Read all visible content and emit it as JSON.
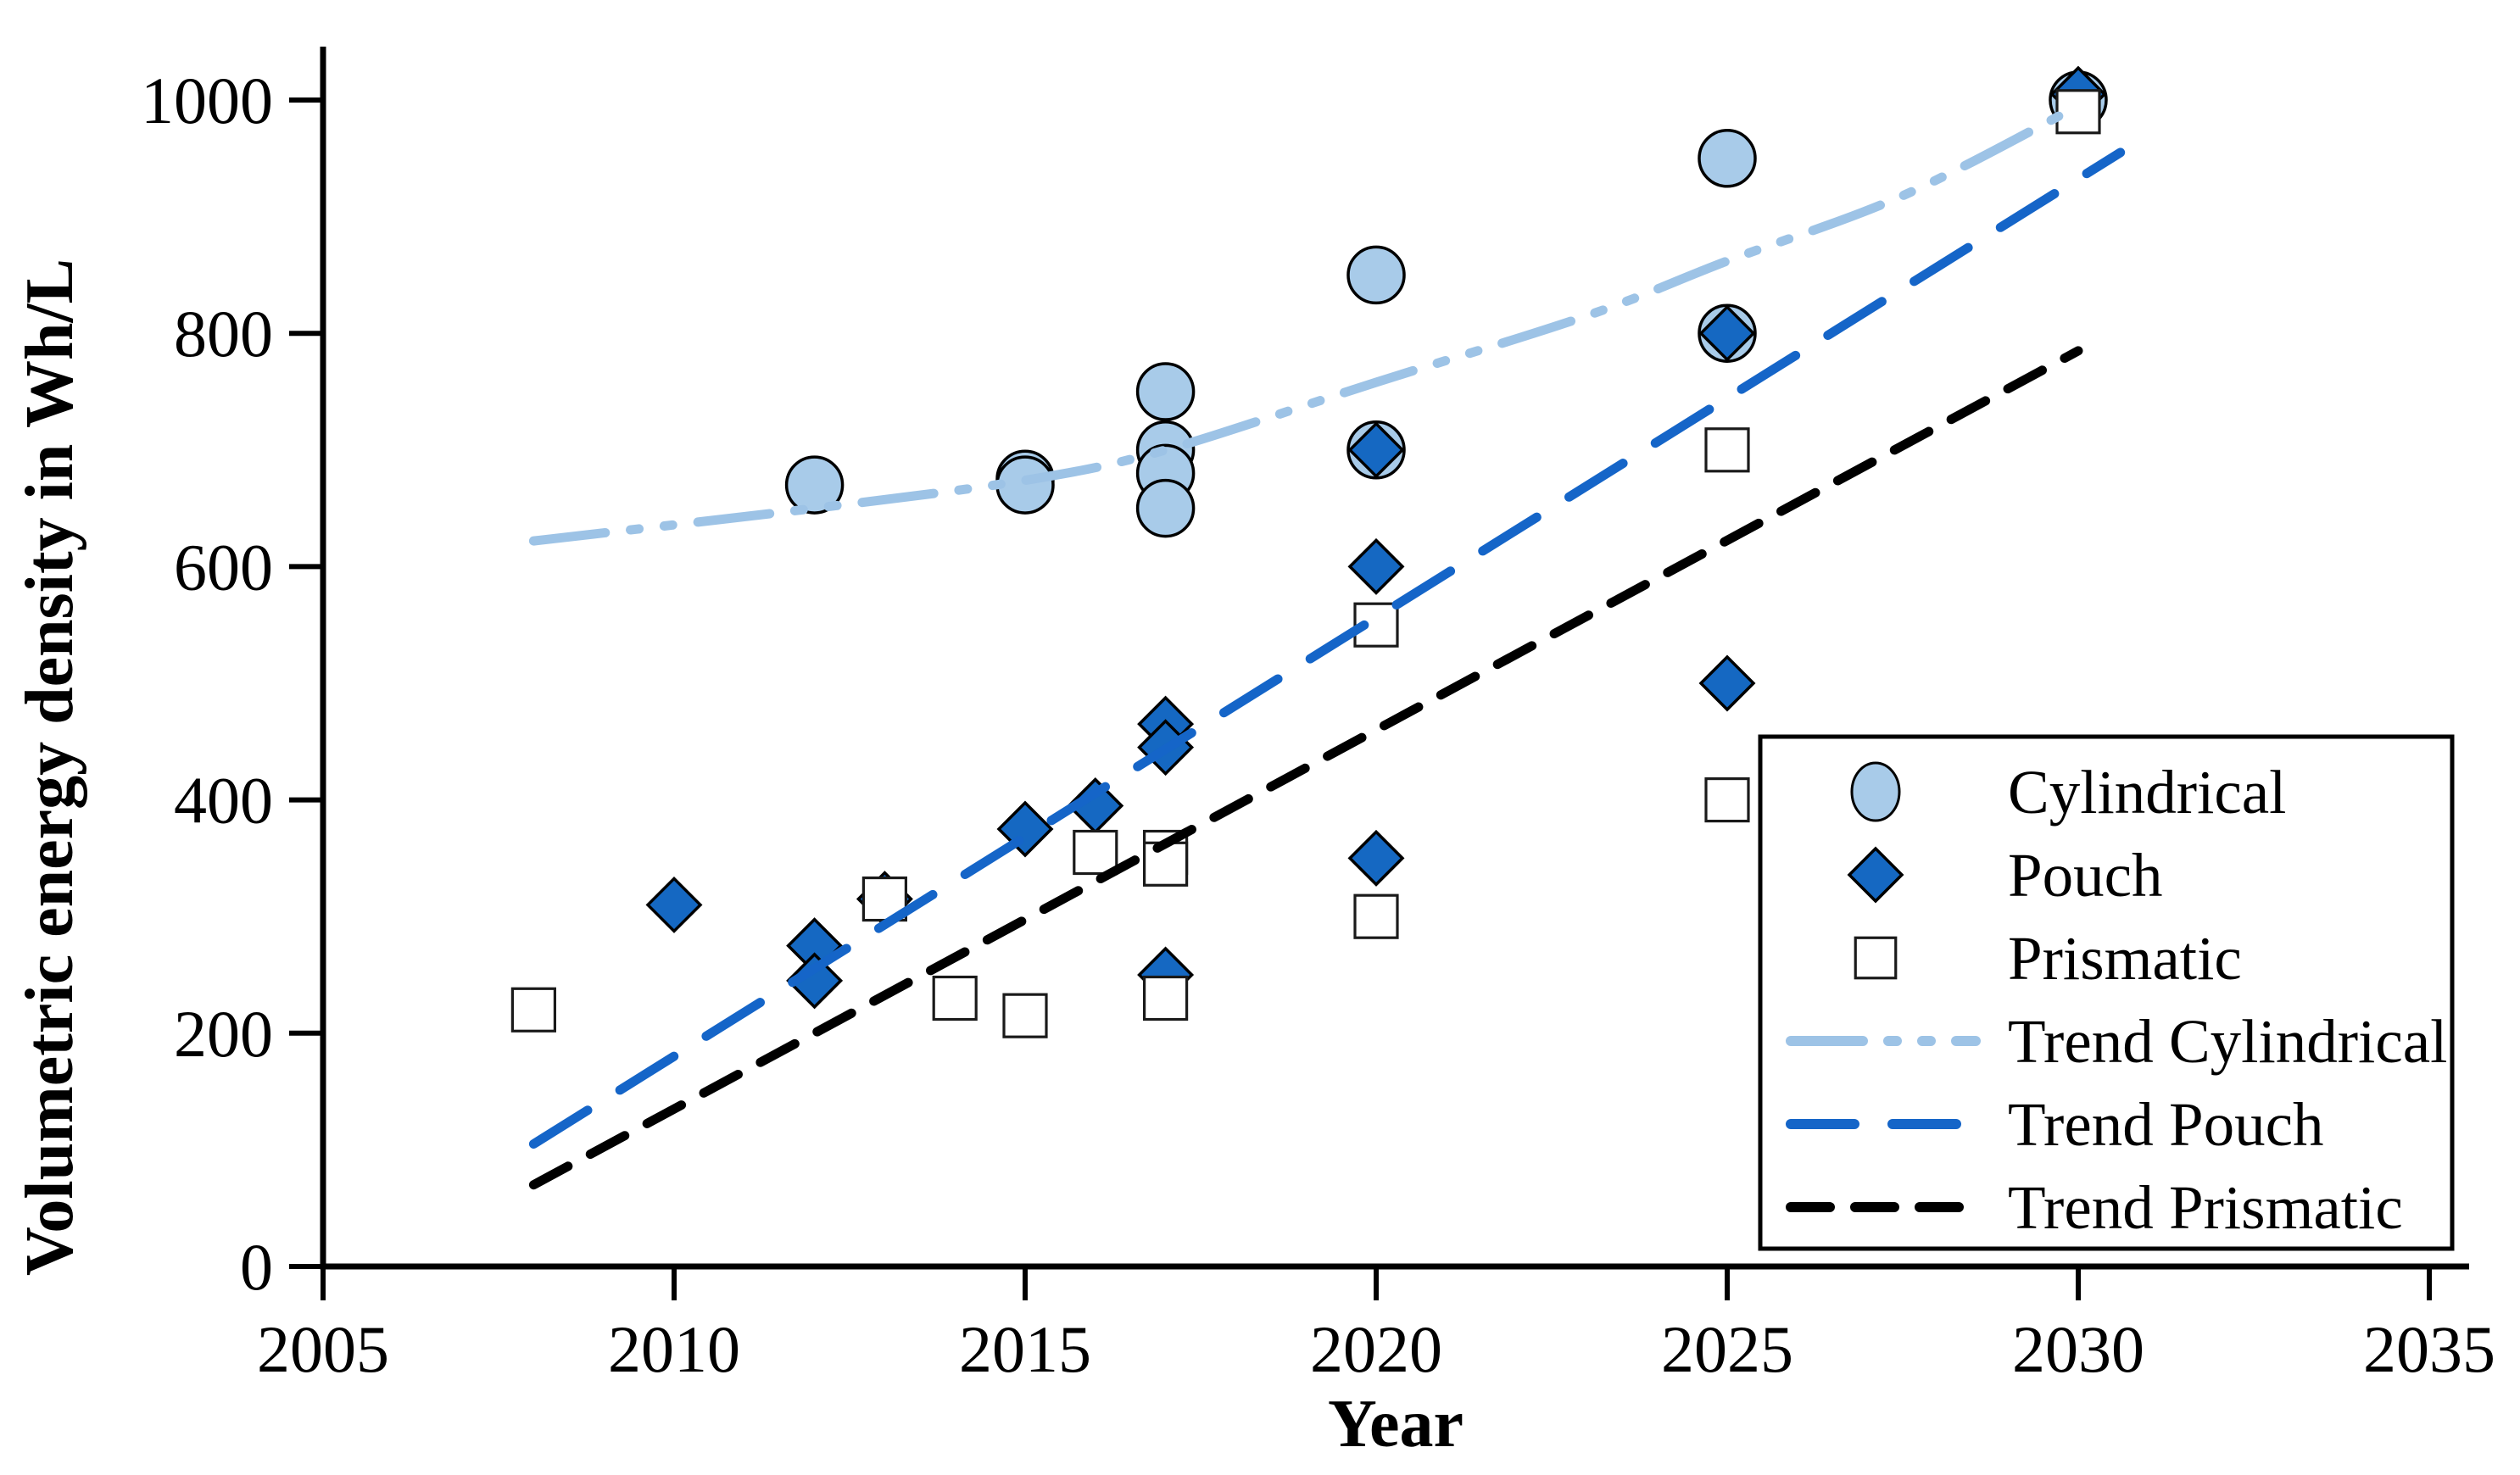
{
  "chart_data": {
    "type": "scatter",
    "title": "",
    "xlabel": "Year",
    "ylabel": "Volumetric energy density in Wh/L",
    "xlim": [
      2005,
      2035
    ],
    "ylim": [
      0,
      1040
    ],
    "x_ticks": [
      2005,
      2010,
      2015,
      2020,
      2025,
      2030,
      2035
    ],
    "y_ticks": [
      0,
      200,
      400,
      600,
      800,
      1000
    ],
    "grid": false,
    "legend_position": "inside-right-bottom",
    "series": [
      {
        "name": "Cylindrical",
        "marker": "circle",
        "fill": "#A8CBE9",
        "stroke": "#000000",
        "points": [
          [
            2012,
            670
          ],
          [
            2015,
            675
          ],
          [
            2015,
            670
          ],
          [
            2017,
            750
          ],
          [
            2017,
            700
          ],
          [
            2017,
            680
          ],
          [
            2017,
            650
          ],
          [
            2020,
            850
          ],
          [
            2020,
            700
          ],
          [
            2025,
            950
          ],
          [
            2025,
            800
          ],
          [
            2030,
            1000
          ]
        ]
      },
      {
        "name": "Pouch",
        "marker": "diamond",
        "fill": "#1568C2",
        "stroke": "#000000",
        "points": [
          [
            2010,
            310
          ],
          [
            2012,
            275
          ],
          [
            2012,
            245
          ],
          [
            2013,
            315
          ],
          [
            2015,
            375
          ],
          [
            2016,
            395
          ],
          [
            2017,
            465
          ],
          [
            2017,
            445
          ],
          [
            2017,
            250
          ],
          [
            2020,
            700
          ],
          [
            2020,
            600
          ],
          [
            2020,
            350
          ],
          [
            2025,
            800
          ],
          [
            2025,
            500
          ],
          [
            2030,
            1005
          ]
        ]
      },
      {
        "name": "Prismatic",
        "marker": "square",
        "fill": "#FFFFFF",
        "stroke": "#1a1a1a",
        "points": [
          [
            2008,
            220
          ],
          [
            2013,
            315
          ],
          [
            2014,
            230
          ],
          [
            2015,
            215
          ],
          [
            2016,
            355
          ],
          [
            2017,
            355
          ],
          [
            2017,
            345
          ],
          [
            2017,
            230
          ],
          [
            2020,
            550
          ],
          [
            2020,
            300
          ],
          [
            2025,
            700
          ],
          [
            2025,
            400
          ],
          [
            2030,
            990
          ]
        ]
      }
    ],
    "trends": [
      {
        "name": "Trend Cylindrical",
        "color": "#9DC3E6",
        "style": "dash-dot-dot",
        "points": [
          [
            2008,
            622
          ],
          [
            2012,
            650
          ],
          [
            2015,
            674
          ],
          [
            2017,
            700
          ],
          [
            2020,
            758
          ],
          [
            2023,
            815
          ],
          [
            2025,
            862
          ],
          [
            2027.5,
            918
          ],
          [
            2030,
            995
          ]
        ]
      },
      {
        "name": "Trend Pouch",
        "color": "#1565C8",
        "style": "long-dash",
        "points": [
          [
            2008,
            105
          ],
          [
            2030.6,
            955
          ]
        ]
      },
      {
        "name": "Trend Prismatic",
        "color": "#000000",
        "style": "short-dash",
        "points": [
          [
            2008,
            70
          ],
          [
            2030,
            785
          ]
        ]
      }
    ],
    "legend_entries": [
      {
        "label": "Cylindrical",
        "swatch": "circle"
      },
      {
        "label": "Pouch",
        "swatch": "diamond"
      },
      {
        "label": "Prismatic",
        "swatch": "square"
      },
      {
        "label": "Trend Cylindrical",
        "swatch": "dash-dot-dot"
      },
      {
        "label": "Trend Pouch",
        "swatch": "long-dash"
      },
      {
        "label": "Trend Prismatic",
        "swatch": "short-dash"
      }
    ],
    "colors": {
      "cylindrical_fill": "#A8CBE9",
      "pouch_fill": "#1568C2",
      "prismatic_fill": "#FFFFFF",
      "trend_cylindrical": "#9DC3E6",
      "trend_pouch": "#1565C8",
      "trend_prismatic": "#000000",
      "axis": "#000000"
    }
  }
}
